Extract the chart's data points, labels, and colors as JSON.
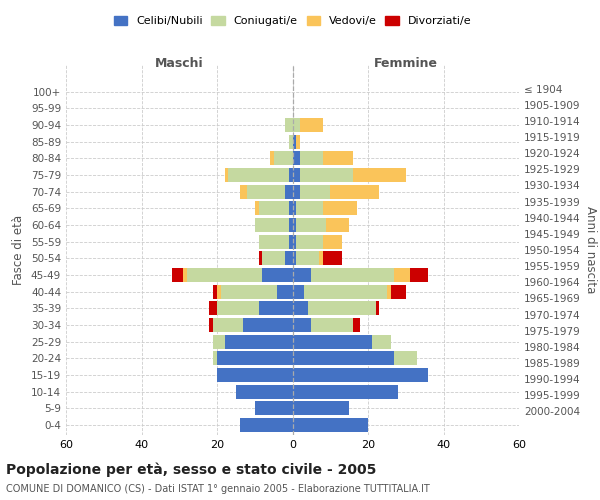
{
  "age_groups": [
    "0-4",
    "5-9",
    "10-14",
    "15-19",
    "20-24",
    "25-29",
    "30-34",
    "35-39",
    "40-44",
    "45-49",
    "50-54",
    "55-59",
    "60-64",
    "65-69",
    "70-74",
    "75-79",
    "80-84",
    "85-89",
    "90-94",
    "95-99",
    "100+"
  ],
  "birth_years": [
    "2000-2004",
    "1995-1999",
    "1990-1994",
    "1985-1989",
    "1980-1984",
    "1975-1979",
    "1970-1974",
    "1965-1969",
    "1960-1964",
    "1955-1959",
    "1950-1954",
    "1945-1949",
    "1940-1944",
    "1935-1939",
    "1930-1934",
    "1925-1929",
    "1920-1924",
    "1915-1919",
    "1910-1914",
    "1905-1909",
    "≤ 1904"
  ],
  "males": {
    "celibi": [
      14,
      10,
      15,
      20,
      20,
      18,
      13,
      9,
      4,
      8,
      2,
      1,
      1,
      1,
      2,
      1,
      0,
      0,
      0,
      0,
      0
    ],
    "coniugati": [
      0,
      0,
      0,
      0,
      1,
      3,
      8,
      11,
      15,
      20,
      6,
      8,
      9,
      8,
      10,
      16,
      5,
      1,
      2,
      0,
      0
    ],
    "vedovi": [
      0,
      0,
      0,
      0,
      0,
      0,
      0,
      0,
      1,
      1,
      0,
      0,
      0,
      1,
      2,
      1,
      1,
      0,
      0,
      0,
      0
    ],
    "divorziati": [
      0,
      0,
      0,
      0,
      0,
      0,
      1,
      2,
      1,
      3,
      1,
      0,
      0,
      0,
      0,
      0,
      0,
      0,
      0,
      0,
      0
    ]
  },
  "females": {
    "nubili": [
      20,
      15,
      28,
      36,
      27,
      21,
      5,
      4,
      3,
      5,
      1,
      1,
      1,
      1,
      2,
      2,
      2,
      1,
      0,
      0,
      0
    ],
    "coniugate": [
      0,
      0,
      0,
      0,
      6,
      5,
      11,
      18,
      22,
      22,
      6,
      7,
      8,
      7,
      8,
      14,
      6,
      0,
      2,
      0,
      0
    ],
    "vedove": [
      0,
      0,
      0,
      0,
      0,
      0,
      0,
      0,
      1,
      4,
      1,
      5,
      6,
      9,
      13,
      14,
      8,
      1,
      6,
      0,
      0
    ],
    "divorziate": [
      0,
      0,
      0,
      0,
      0,
      0,
      2,
      1,
      4,
      5,
      5,
      0,
      0,
      0,
      0,
      0,
      0,
      0,
      0,
      0,
      0
    ]
  },
  "colors": {
    "celibi_nubili": "#4472C4",
    "coniugati": "#C5D9A0",
    "vedovi": "#FAC45A",
    "divorziati": "#CC0000"
  },
  "xlim": 60,
  "title": "Popolazione per età, sesso e stato civile - 2005",
  "subtitle": "COMUNE DI DOMANICO (CS) - Dati ISTAT 1° gennaio 2005 - Elaborazione TUTTITALIA.IT",
  "xlabel_left": "Maschi",
  "xlabel_right": "Femmine",
  "ylabel_left": "Fasce di età",
  "ylabel_right": "Anni di nascita",
  "legend_labels": [
    "Celibi/Nubili",
    "Coniugati/e",
    "Vedovi/e",
    "Divorziati/e"
  ],
  "background_color": "#ffffff",
  "grid_color": "#cccccc"
}
